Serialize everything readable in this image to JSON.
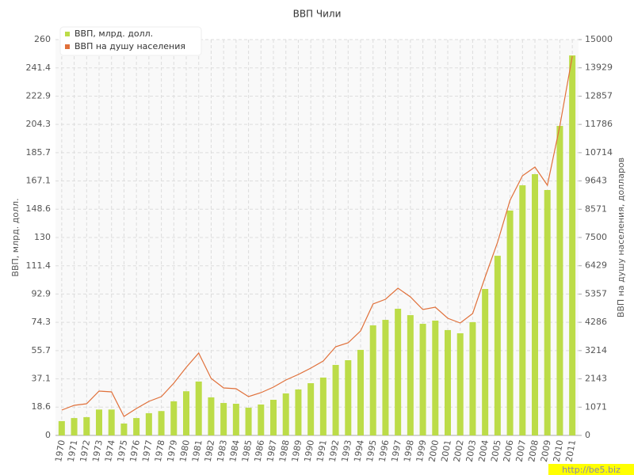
{
  "chart_data": {
    "type": "bar_line",
    "title": "ВВП Чили",
    "y_label": "ВВП, млрд. долл.",
    "y2_label": "ВВП на душу населения, долларов",
    "watermark": "http://be5.biz",
    "categories": [
      "1970",
      "1971",
      "1972",
      "1973",
      "1974",
      "1975",
      "1976",
      "1977",
      "1978",
      "1979",
      "1980",
      "1981",
      "1982",
      "1983",
      "1984",
      "1985",
      "1986",
      "1987",
      "1988",
      "1989",
      "1990",
      "1991",
      "1992",
      "1993",
      "1994",
      "1995",
      "1996",
      "1997",
      "1998",
      "1999",
      "2000",
      "2001",
      "2002",
      "2003",
      "2004",
      "2005",
      "2006",
      "2007",
      "2008",
      "2009",
      "2010",
      "2011"
    ],
    "series": [
      {
        "name": "ВВП, млрд. долл.",
        "color": "#bcdc48",
        "type": "bar",
        "values": [
          9.4,
          11.4,
          12,
          17,
          17,
          7.8,
          11.4,
          14.6,
          16,
          22.4,
          29,
          35.4,
          25,
          21.3,
          20.8,
          18.2,
          20.3,
          23.4,
          27.6,
          30.2,
          34.3,
          38,
          46.3,
          49.4,
          56.2,
          72.3,
          75.9,
          83.2,
          79,
          73.3,
          75.4,
          69.2,
          67.1,
          74.4,
          96.2,
          118,
          147.7,
          164.3,
          171.6,
          161.2,
          203.3,
          249.6
        ]
      },
      {
        "name": "ВВП на душу населения",
        "color": "#e0703a",
        "type": "line",
        "axis": "y2",
        "values": [
          960,
          1140,
          1200,
          1680,
          1650,
          720,
          1020,
          1290,
          1470,
          1980,
          2580,
          3120,
          2160,
          1800,
          1770,
          1470,
          1620,
          1830,
          2100,
          2310,
          2550,
          2820,
          3360,
          3510,
          3960,
          4980,
          5160,
          5580,
          5250,
          4770,
          4860,
          4440,
          4260,
          4620,
          6000,
          7320,
          8910,
          9840,
          10170,
          9480,
          11730,
          14370
        ]
      }
    ],
    "ylim": [
      0,
      260
    ],
    "yticks": [
      0,
      18.6,
      37.1,
      55.7,
      74.3,
      92.9,
      111.4,
      130,
      148.6,
      167.1,
      185.7,
      204.3,
      222.9,
      241.4,
      260
    ],
    "y2lim": [
      0,
      15000
    ],
    "y2ticks": [
      0,
      1071,
      2143,
      3214,
      4286,
      5357,
      6429,
      7500,
      8571,
      9643,
      10714,
      11786,
      12857,
      13929,
      15000
    ],
    "grid": true
  }
}
